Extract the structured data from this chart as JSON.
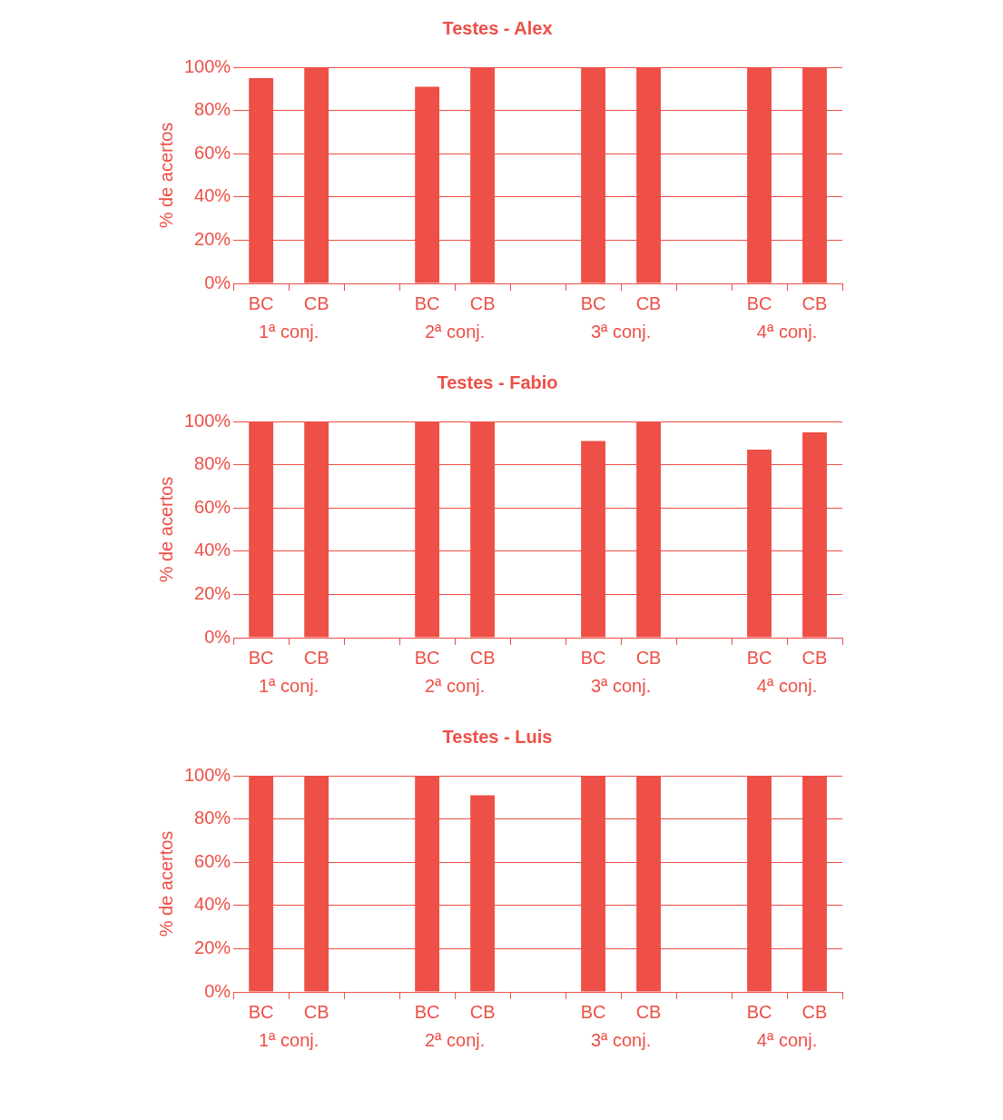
{
  "chart_data": [
    {
      "type": "bar",
      "title": "Testes - Alex",
      "ylabel": "% de acertos",
      "categories": [
        "BC",
        "CB",
        null,
        "BC",
        "CB",
        null,
        "BC",
        "CB",
        null,
        "BC",
        "CB"
      ],
      "values": [
        95,
        100,
        null,
        91,
        100,
        null,
        100,
        100,
        null,
        100,
        100
      ],
      "color": "#ee4f46",
      "ylim": [
        0,
        100
      ],
      "yticks": [
        {
          "value": 0,
          "label": "0%"
        },
        {
          "value": 20,
          "label": "20%"
        },
        {
          "value": 40,
          "label": "40%"
        },
        {
          "value": 60,
          "label": "60%"
        },
        {
          "value": 80,
          "label": "80%"
        },
        {
          "value": 100,
          "label": "100%"
        }
      ],
      "grid": "y",
      "annotations": [
        "1ª conj.",
        "2ª conj.",
        "3ª conj.",
        "4ª conj."
      ]
    },
    {
      "type": "bar",
      "title": "Testes - Fabio",
      "ylabel": "% de acertos",
      "categories": [
        "BC",
        "CB",
        null,
        "BC",
        "CB",
        null,
        "BC",
        "CB",
        null,
        "BC",
        "CB"
      ],
      "values": [
        100,
        100,
        null,
        100,
        100,
        null,
        91,
        100,
        null,
        87,
        95
      ],
      "color": "#ee4f46",
      "ylim": [
        0,
        100
      ],
      "yticks": [
        {
          "value": 0,
          "label": "0%"
        },
        {
          "value": 20,
          "label": "20%"
        },
        {
          "value": 40,
          "label": "40%"
        },
        {
          "value": 60,
          "label": "60%"
        },
        {
          "value": 80,
          "label": "80%"
        },
        {
          "value": 100,
          "label": "100%"
        }
      ],
      "grid": "y",
      "annotations": [
        "1ª conj.",
        "2ª conj.",
        "3ª conj.",
        "4ª conj."
      ]
    },
    {
      "type": "bar",
      "title": "Testes - Luis",
      "ylabel": "% de acertos",
      "categories": [
        "BC",
        "CB",
        null,
        "BC",
        "CB",
        null,
        "BC",
        "CB",
        null,
        "BC",
        "CB"
      ],
      "values": [
        100,
        100,
        null,
        100,
        91,
        null,
        100,
        100,
        null,
        100,
        100
      ],
      "color": "#ee4f46",
      "ylim": [
        0,
        100
      ],
      "yticks": [
        {
          "value": 0,
          "label": "0%"
        },
        {
          "value": 20,
          "label": "20%"
        },
        {
          "value": 40,
          "label": "40%"
        },
        {
          "value": 60,
          "label": "60%"
        },
        {
          "value": 80,
          "label": "80%"
        },
        {
          "value": 100,
          "label": "100%"
        }
      ],
      "grid": "y",
      "annotations": [
        "1ª conj.",
        "2ª conj.",
        "3ª conj.",
        "4ª conj."
      ]
    }
  ]
}
